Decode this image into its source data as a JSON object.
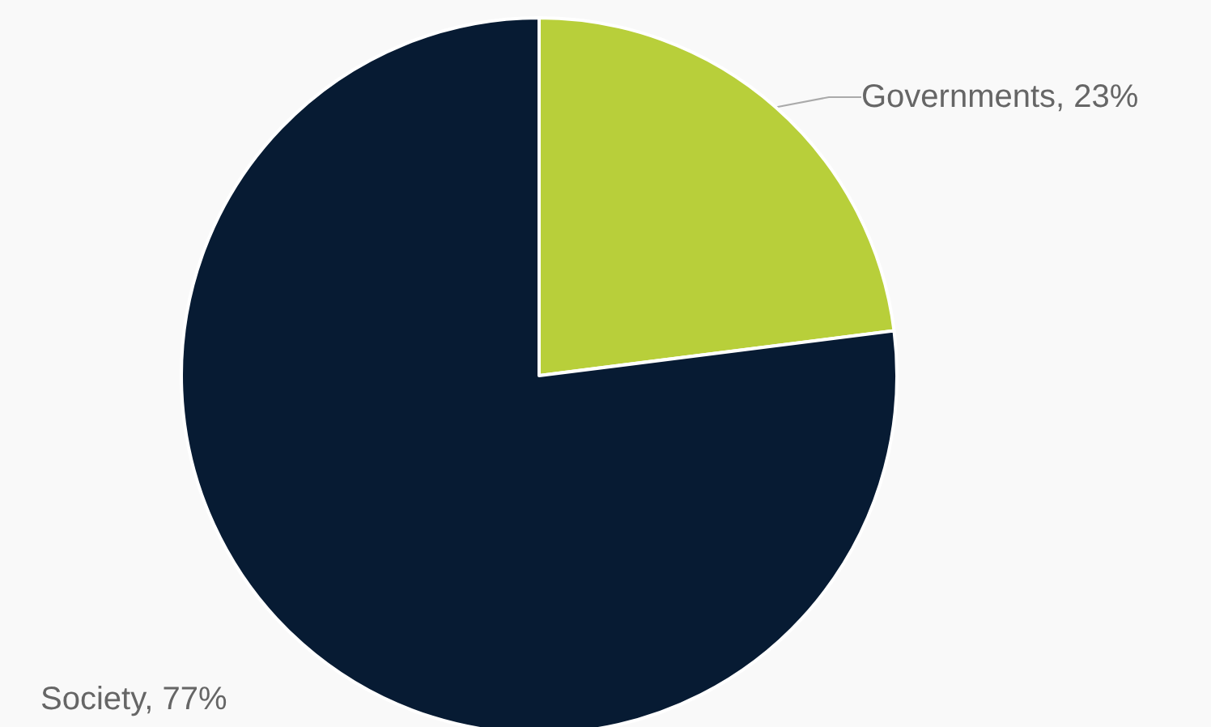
{
  "chart_data": {
    "type": "pie",
    "categories": [
      "Governments, 23%",
      "Society, 77%"
    ],
    "values": [
      23,
      77
    ],
    "colors": [
      "#b8cf3a",
      "#071b33"
    ],
    "legend": false
  }
}
